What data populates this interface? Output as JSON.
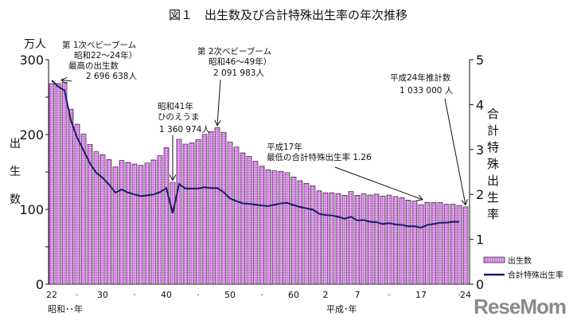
{
  "chart_data": {
    "type": "bar+line",
    "title": "図１　出生数及び合計特殊出生率の年次推移",
    "y_unit": "万人",
    "ylabel_left": "出生数",
    "ylabel_right": "合計特殊出生率",
    "ylim_left": [
      0,
      300
    ],
    "yticks_left": [
      0,
      100,
      200,
      300
    ],
    "ylim_right": [
      0,
      5
    ],
    "yticks_right": [
      0,
      1,
      2,
      3,
      4,
      5
    ],
    "x_era_label_showa": "昭和･･年",
    "x_era_label_heisei": "平成･年",
    "x_years": [
      1947,
      1948,
      1949,
      1950,
      1951,
      1952,
      1953,
      1954,
      1955,
      1956,
      1957,
      1958,
      1959,
      1960,
      1961,
      1962,
      1963,
      1964,
      1965,
      1966,
      1967,
      1968,
      1969,
      1970,
      1971,
      1972,
      1973,
      1974,
      1975,
      1976,
      1977,
      1978,
      1979,
      1980,
      1981,
      1982,
      1983,
      1984,
      1985,
      1986,
      1987,
      1988,
      1989,
      1990,
      1991,
      1992,
      1993,
      1994,
      1995,
      1996,
      1997,
      1998,
      1999,
      2000,
      2001,
      2002,
      2003,
      2004,
      2005,
      2006,
      2007,
      2008,
      2009,
      2010,
      2011,
      2012
    ],
    "x_tick_labels": [
      {
        "year": 1947,
        "label": "22"
      },
      {
        "year": 1951,
        "label": "·"
      },
      {
        "year": 1955,
        "label": "30"
      },
      {
        "year": 1960,
        "label": "·"
      },
      {
        "year": 1965,
        "label": "40"
      },
      {
        "year": 1970,
        "label": "·"
      },
      {
        "year": 1975,
        "label": "50"
      },
      {
        "year": 1980,
        "label": "·"
      },
      {
        "year": 1985,
        "label": "60"
      },
      {
        "year": 1990,
        "label": "2"
      },
      {
        "year": 1995,
        "label": "7"
      },
      {
        "year": 2000,
        "label": "·"
      },
      {
        "year": 2005,
        "label": "17"
      },
      {
        "year": 2011,
        "label": "·"
      },
      {
        "year": 2012,
        "label": "24"
      }
    ],
    "series": [
      {
        "name": "出生数",
        "type": "bar",
        "axis": "left",
        "color": "#d27ee6",
        "values": [
          267.9,
          268.2,
          269.7,
          233.8,
          213.8,
          200.5,
          186.8,
          177.0,
          173.1,
          166.5,
          156.7,
          165.3,
          162.6,
          160.6,
          158.9,
          161.9,
          166.0,
          171.7,
          182.4,
          136.1,
          193.6,
          187.2,
          188.9,
          193.4,
          200.1,
          203.9,
          209.2,
          203.0,
          190.1,
          183.3,
          175.5,
          170.9,
          164.3,
          157.7,
          152.9,
          151.5,
          150.9,
          149.0,
          143.2,
          138.3,
          134.7,
          131.4,
          124.7,
          122.2,
          122.3,
          120.9,
          118.8,
          123.8,
          118.7,
          120.7,
          119.2,
          120.3,
          117.8,
          119.1,
          117.1,
          115.4,
          112.4,
          111.1,
          106.3,
          109.3,
          109.0,
          109.1,
          107.0,
          107.1,
          105.1,
          103.3
        ]
      },
      {
        "name": "合計特殊出生率",
        "type": "line",
        "axis": "right",
        "color": "#1b1b6b",
        "values": [
          4.54,
          4.4,
          4.32,
          3.65,
          3.26,
          2.98,
          2.69,
          2.48,
          2.37,
          2.22,
          2.04,
          2.11,
          2.04,
          2.0,
          1.96,
          1.98,
          2.0,
          2.05,
          2.14,
          1.58,
          2.23,
          2.13,
          2.13,
          2.13,
          2.16,
          2.14,
          2.14,
          2.05,
          1.91,
          1.85,
          1.8,
          1.79,
          1.77,
          1.75,
          1.74,
          1.77,
          1.8,
          1.81,
          1.76,
          1.72,
          1.69,
          1.66,
          1.57,
          1.54,
          1.53,
          1.5,
          1.46,
          1.5,
          1.42,
          1.43,
          1.39,
          1.38,
          1.34,
          1.36,
          1.33,
          1.32,
          1.29,
          1.29,
          1.26,
          1.32,
          1.34,
          1.37,
          1.37,
          1.39,
          1.39,
          null
        ]
      }
    ],
    "legend_position": "bottom-right",
    "annotations": [
      {
        "lines": [
          "第 1次ベビーブーム",
          "昭和22～24年）",
          "最高の出生数",
          "2 696 638人"
        ],
        "year": 1949
      },
      {
        "lines": [
          "昭和41年",
          "ひのえうま",
          "1 360 974人"
        ],
        "year": 1966
      },
      {
        "lines": [
          "第 2次ベビーブーム",
          "昭和46～49年）",
          "2 091 983人"
        ],
        "year": 1973
      },
      {
        "lines": [
          "平成17年",
          "最低の合計特殊出生率 1.26"
        ],
        "year": 2005
      },
      {
        "lines": [
          "平成24年推計数",
          "1 033 000 人"
        ],
        "year": 2012
      }
    ]
  },
  "watermark": "ReseMom"
}
